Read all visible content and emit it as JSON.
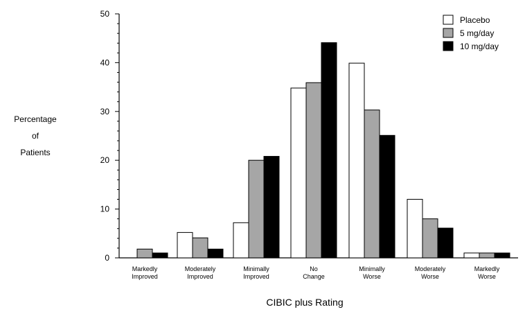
{
  "chart_data": {
    "type": "bar",
    "title": "",
    "ylabel": [
      "Percentage",
      "of",
      "Patients"
    ],
    "xlabel": "CIBIC plus Rating",
    "ylim": [
      0,
      50
    ],
    "yticks": [
      0,
      10,
      20,
      30,
      40,
      50
    ],
    "categories": [
      [
        "Markedly",
        "Improved"
      ],
      [
        "Moderately",
        "Improved"
      ],
      [
        "Minimally",
        "Improved"
      ],
      [
        "No",
        "Change"
      ],
      [
        "Minimally",
        "Worse"
      ],
      [
        "Moderately",
        "Worse"
      ],
      [
        "Markedly",
        "Worse"
      ]
    ],
    "series": [
      {
        "name": "Placebo",
        "color": "#ffffff",
        "values": [
          0,
          5.2,
          7.2,
          34.8,
          39.9,
          12,
          1
        ]
      },
      {
        "name": "5 mg/day",
        "color": "#a6a6a6",
        "values": [
          1.8,
          4.1,
          20,
          35.9,
          30.3,
          8,
          1
        ]
      },
      {
        "name": "10 mg/day",
        "color": "#000000",
        "values": [
          1,
          1.8,
          20.8,
          44.1,
          25.1,
          6.1,
          1
        ]
      }
    ],
    "legend_position": "top-right",
    "grid": false
  }
}
